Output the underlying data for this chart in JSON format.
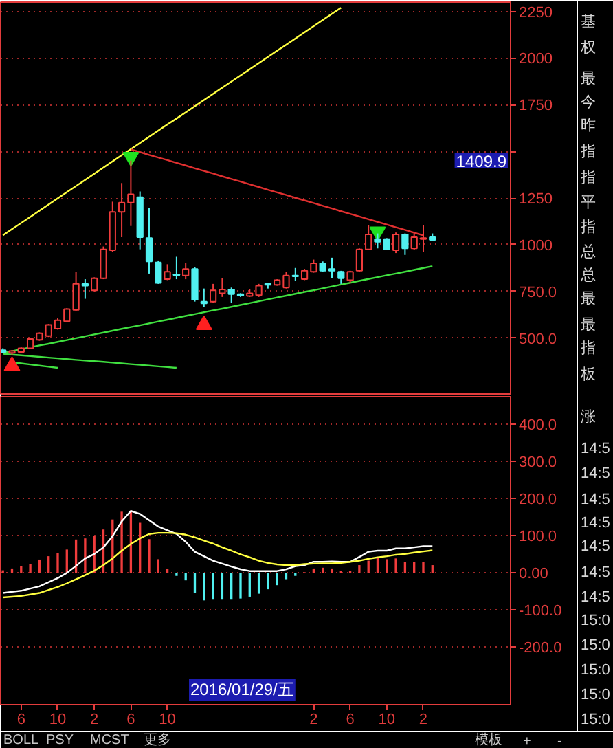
{
  "chart_data": [
    {
      "type": "candlestick",
      "categories": [
        null,
        null,
        null,
        null,
        null,
        null,
        null,
        null,
        null,
        null,
        null,
        null,
        null,
        null,
        null,
        null,
        null,
        null,
        null,
        null,
        null,
        null,
        null,
        null,
        null,
        null,
        null,
        null,
        null,
        null,
        null,
        null,
        null,
        null,
        null,
        null,
        null,
        null,
        null,
        null,
        null,
        null,
        null,
        null,
        null,
        null,
        null,
        null
      ],
      "ohlc": [
        [
          435,
          445,
          420,
          425
        ],
        [
          420,
          435,
          410,
          430
        ],
        [
          425,
          450,
          420,
          445
        ],
        [
          445,
          500,
          440,
          495
        ],
        [
          490,
          530,
          485,
          525
        ],
        [
          510,
          575,
          505,
          570
        ],
        [
          550,
          605,
          545,
          595
        ],
        [
          590,
          660,
          585,
          655
        ],
        [
          650,
          855,
          645,
          790
        ],
        [
          790,
          815,
          710,
          780
        ],
        [
          755,
          825,
          750,
          820
        ],
        [
          820,
          990,
          815,
          975
        ],
        [
          970,
          1230,
          960,
          1175
        ],
        [
          1175,
          1330,
          1040,
          1225
        ],
        [
          1225,
          1450,
          1100,
          1270
        ],
        [
          1255,
          1285,
          975,
          1040
        ],
        [
          1035,
          1195,
          845,
          910
        ],
        [
          905,
          915,
          790,
          795
        ],
        [
          815,
          895,
          810,
          855
        ],
        [
          840,
          935,
          815,
          835
        ],
        [
          835,
          900,
          815,
          870
        ],
        [
          870,
          880,
          695,
          705
        ],
        [
          695,
          765,
          665,
          685
        ],
        [
          695,
          790,
          690,
          755
        ],
        [
          740,
          820,
          720,
          760
        ],
        [
          760,
          770,
          690,
          735
        ],
        [
          735,
          740,
          720,
          730
        ],
        [
          725,
          760,
          720,
          740
        ],
        [
          730,
          790,
          720,
          780
        ],
        [
          790,
          795,
          765,
          785
        ],
        [
          785,
          815,
          780,
          810
        ],
        [
          770,
          855,
          765,
          835
        ],
        [
          835,
          875,
          805,
          830
        ],
        [
          815,
          870,
          810,
          860
        ],
        [
          855,
          920,
          850,
          900
        ],
        [
          900,
          910,
          855,
          860
        ],
        [
          870,
          930,
          820,
          860
        ],
        [
          855,
          860,
          790,
          820
        ],
        [
          810,
          860,
          795,
          855
        ],
        [
          860,
          980,
          855,
          975
        ],
        [
          975,
          1105,
          970,
          1055
        ],
        [
          1030,
          1060,
          980,
          1015
        ],
        [
          1030,
          1035,
          970,
          975
        ],
        [
          970,
          1065,
          955,
          1055
        ],
        [
          1055,
          1060,
          945,
          980
        ],
        [
          980,
          1055,
          970,
          1040
        ],
        [
          1030,
          1105,
          960,
          1035
        ],
        [
          1040,
          1060,
          1020,
          1025
        ]
      ],
      "colors": [
        "#50f0f0",
        "#f03c3c",
        "#f03c3c",
        "#f03c3c",
        "#f03c3c",
        "#f03c3c",
        "#f03c3c",
        "#f03c3c",
        "#f03c3c",
        "#50f0f0",
        "#f03c3c",
        "#f03c3c",
        "#f03c3c",
        "#f03c3c",
        "#f03c3c",
        "#50f0f0",
        "#50f0f0",
        "#50f0f0",
        "#f03c3c",
        "#50f0f0",
        "#f03c3c",
        "#50f0f0",
        "#50f0f0",
        "#f03c3c",
        "#f03c3c",
        "#50f0f0",
        "#50f0f0",
        "#f03c3c",
        "#f03c3c",
        "#50f0f0",
        "#f03c3c",
        "#f03c3c",
        "#50f0f0",
        "#f03c3c",
        "#f03c3c",
        "#50f0f0",
        "#50f0f0",
        "#50f0f0",
        "#f03c3c",
        "#f03c3c",
        "#f03c3c",
        "#50f0f0",
        "#50f0f0",
        "#f03c3c",
        "#50f0f0",
        "#f03c3c",
        "#f03c3c",
        "#50f0f0"
      ],
      "series": [
        {
          "type": "line",
          "color": "#ffff40",
          "values": [
            1050,
            1083,
            1116,
            1149,
            1182,
            1215,
            1248,
            1281,
            1314,
            1347,
            1380,
            1413,
            1446,
            1479,
            1512,
            1545,
            1578,
            1611,
            1644,
            1676,
            1709,
            1742,
            1775,
            1808,
            1841,
            1874,
            1907,
            1940,
            1973,
            2006,
            2039,
            2072,
            2105,
            2138,
            2171,
            2204,
            2237,
            2270,
            null,
            null,
            null,
            null,
            null,
            null,
            null,
            null,
            null,
            null
          ]
        },
        {
          "type": "line",
          "color": "#e03030",
          "values": [
            null,
            null,
            null,
            null,
            null,
            null,
            null,
            null,
            null,
            null,
            null,
            null,
            null,
            null,
            1510,
            1496,
            1481,
            1467,
            1453,
            1438,
            1424,
            1409,
            1395,
            1381,
            1366,
            1352,
            1338,
            1323,
            1309,
            1294,
            1280,
            1266,
            1251,
            1237,
            1223,
            1208,
            1194,
            1179,
            1165,
            1151,
            1136,
            1122,
            1108,
            1093,
            1079,
            1064,
            1050,
            null
          ]
        },
        {
          "type": "line",
          "color": "#40e040",
          "values": [
            420,
            430,
            440,
            450,
            460,
            469,
            479,
            489,
            499,
            509,
            519,
            529,
            539,
            549,
            559,
            568,
            578,
            588,
            598,
            608,
            618,
            628,
            638,
            648,
            657,
            667,
            677,
            687,
            697,
            707,
            717,
            727,
            737,
            747,
            756,
            766,
            776,
            786,
            796,
            806,
            816,
            826,
            836,
            845,
            855,
            865,
            875,
            885
          ]
        },
        {
          "type": "line",
          "color": "#40e040",
          "values": [
            415,
            411,
            407,
            403,
            399,
            395,
            391,
            387,
            383,
            379,
            376,
            372,
            368,
            364,
            360,
            356,
            352,
            348,
            344,
            340,
            null,
            null,
            null,
            null,
            null,
            null,
            null,
            null,
            null,
            null,
            null,
            null,
            null,
            null,
            null,
            null,
            null,
            null,
            null,
            null,
            null,
            null,
            null,
            null,
            null,
            null,
            null,
            null
          ]
        },
        {
          "type": "line",
          "color": "#40e040",
          "values": [
            null,
            370,
            364,
            358,
            352,
            346,
            340,
            null,
            null,
            null,
            null,
            null,
            null,
            null,
            null,
            null,
            null,
            null,
            null,
            null,
            null,
            null,
            null,
            null,
            null,
            null,
            null,
            null,
            null,
            null,
            null,
            null,
            null,
            null,
            null,
            null,
            null,
            null,
            null,
            null,
            null,
            null,
            null,
            null,
            null,
            null,
            null,
            null
          ]
        },
        {
          "type": "scatter",
          "marker": "triangle",
          "color": "#ff2020",
          "values": [
            null,
            350,
            null,
            null,
            null,
            null,
            null,
            null,
            null,
            null,
            null,
            null,
            null,
            null,
            null,
            null,
            null,
            null,
            null,
            null,
            null,
            null,
            570,
            null,
            null,
            null,
            null,
            null,
            null,
            null,
            null,
            null,
            null,
            null,
            null,
            null,
            null,
            null,
            null,
            null,
            null,
            null,
            null,
            null,
            null,
            null,
            null,
            null
          ]
        },
        {
          "type": "scatter",
          "marker": "triangle-down",
          "color": "#20e020",
          "values": [
            null,
            null,
            null,
            null,
            null,
            null,
            null,
            null,
            null,
            null,
            null,
            null,
            null,
            null,
            1470,
            null,
            null,
            null,
            null,
            null,
            null,
            null,
            null,
            null,
            null,
            null,
            null,
            null,
            null,
            null,
            null,
            null,
            null,
            null,
            null,
            null,
            null,
            null,
            null,
            null,
            null,
            1070,
            null,
            null,
            null,
            null,
            null,
            null
          ]
        }
      ],
      "ylim": [
        200,
        2300
      ],
      "yticks": [
        2250,
        2000,
        1750,
        {
          "value": 1500,
          "label": null
        },
        1250,
        1000,
        {
          "value": 750,
          "label": "750.0"
        },
        {
          "value": 500,
          "label": "500.0"
        }
      ],
      "grid": "y",
      "annotations": [
        "1409.9"
      ]
    },
    {
      "type": "bar",
      "categories": [
        null,
        null,
        "6",
        null,
        null,
        null,
        "10",
        null,
        null,
        null,
        "2",
        null,
        null,
        null,
        "6",
        null,
        null,
        null,
        "10",
        null,
        null,
        null,
        null,
        null,
        null,
        null,
        null,
        null,
        null,
        null,
        null,
        null,
        null,
        null,
        "2",
        null,
        null,
        null,
        "6",
        null,
        null,
        null,
        "10",
        null,
        null,
        null,
        "2",
        null
      ],
      "series": [
        {
          "type": "bar",
          "colors": [
            "#f03c3c",
            "#f03c3c",
            "#f03c3c",
            "#f03c3c",
            "#f03c3c",
            "#f03c3c",
            "#f03c3c",
            "#f03c3c",
            "#f03c3c",
            "#f03c3c",
            "#f03c3c",
            "#f03c3c",
            "#f03c3c",
            "#f03c3c",
            "#f03c3c",
            "#f03c3c",
            "#f03c3c",
            "#f03c3c",
            "#f03c3c",
            "#50f0f0",
            "#50f0f0",
            "#50f0f0",
            "#50f0f0",
            "#50f0f0",
            "#50f0f0",
            "#50f0f0",
            "#50f0f0",
            "#50f0f0",
            "#50f0f0",
            "#50f0f0",
            "#50f0f0",
            "#50f0f0",
            "#50f0f0",
            "#f03c3c",
            "#f03c3c",
            "#f03c3c",
            "#f03c3c",
            "#f03c3c",
            "#f03c3c",
            "#f03c3c",
            "#f03c3c",
            "#f03c3c",
            "#f03c3c",
            "#f03c3c",
            "#f03c3c",
            "#f03c3c",
            "#f03c3c",
            "#f03c3c"
          ],
          "values": [
            7,
            12,
            18,
            24,
            36,
            45,
            54,
            63,
            90,
            93,
            99,
            117,
            144,
            165,
            168,
            135,
            91,
            37,
            10,
            -8,
            -20,
            -53,
            -74,
            -72,
            -72,
            -72,
            -69,
            -64,
            -56,
            -44,
            -33,
            -17,
            -8,
            2,
            12,
            14,
            12,
            5,
            6,
            21,
            33,
            42,
            37,
            39,
            29,
            29,
            29,
            21
          ]
        },
        {
          "type": "line",
          "color": "#ffffff",
          "values": [
            -54,
            -51,
            -48,
            -42,
            -36,
            -25,
            -14,
            0,
            19,
            39,
            51,
            69,
            99,
            139,
            167,
            159,
            142,
            125,
            115,
            105,
            84,
            57,
            45,
            33,
            25,
            17,
            10,
            5,
            5,
            5,
            5,
            10,
            18,
            21,
            30,
            30,
            31,
            30,
            30,
            43,
            57,
            60,
            60,
            66,
            66,
            69,
            72,
            72
          ]
        },
        {
          "type": "line",
          "color": "#ffff40",
          "values": [
            -66,
            -64,
            -62,
            -58,
            -54,
            -46,
            -38,
            -28,
            -17,
            -6,
            6,
            21,
            39,
            60,
            78,
            93,
            105,
            108,
            108,
            107,
            103,
            96,
            87,
            79,
            69,
            60,
            50,
            42,
            33,
            27,
            23,
            21,
            21,
            24,
            25,
            26,
            26,
            27,
            30,
            33,
            38,
            42,
            45,
            49,
            51,
            55,
            58,
            61
          ]
        }
      ],
      "ylim": [
        -355,
        475
      ],
      "yticks": [
        {
          "value": 400,
          "label": "400.0"
        },
        {
          "value": 300,
          "label": "300.0"
        },
        {
          "value": 200,
          "label": "200.0"
        },
        {
          "value": 100,
          "label": "100.0"
        },
        {
          "value": 0,
          "label": "0.00"
        },
        {
          "value": -100,
          "label": "-100.0"
        },
        {
          "value": -200,
          "label": "-200.0"
        }
      ],
      "grid": "y",
      "annotations": [
        "2016/01/29/五"
      ]
    },
    {
      "type": "other",
      "annotations": [
        "基",
        "权",
        "最",
        "今",
        "昨",
        "指",
        "指",
        "平",
        "指",
        "总",
        "总",
        "最",
        "最",
        "指",
        "板",
        "涨",
        "14:5",
        "14:5",
        "14:5",
        "14:5",
        "14:5",
        "14:5",
        "14:5",
        "15:0",
        "15:0",
        "15:0",
        "15:0",
        "15:0"
      ]
    },
    {
      "type": "other",
      "annotations": [
        "BOLL",
        "PSY",
        "MCST",
        "更多",
        "模板",
        "+",
        "-"
      ]
    }
  ]
}
